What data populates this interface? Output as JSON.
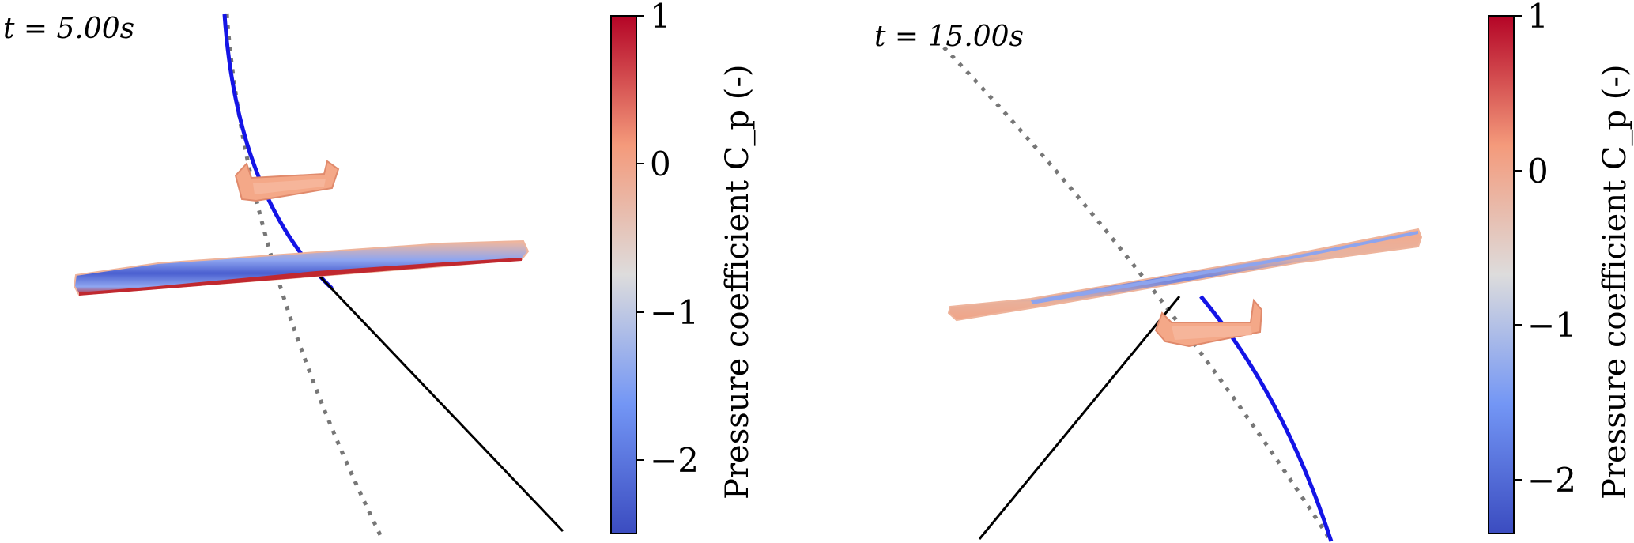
{
  "panels": [
    {
      "time": "t = 5.00s",
      "colorbar": {
        "label": "Pressure coefficient C_p (-)",
        "ticks": [
          "1",
          "0",
          "−1",
          "−2"
        ],
        "range": [
          -2.5,
          1
        ]
      }
    },
    {
      "time": "t = 15.00s",
      "colorbar": {
        "label": "Pressure coefficient C_p (-)",
        "ticks": [
          "1",
          "0",
          "−1",
          "−2"
        ],
        "range": [
          -2.35,
          1
        ]
      }
    }
  ],
  "colors": {
    "colormap": "coolwarm",
    "trajectory": "#1414e6",
    "reference_path": "#777777",
    "tether": "#000000"
  }
}
